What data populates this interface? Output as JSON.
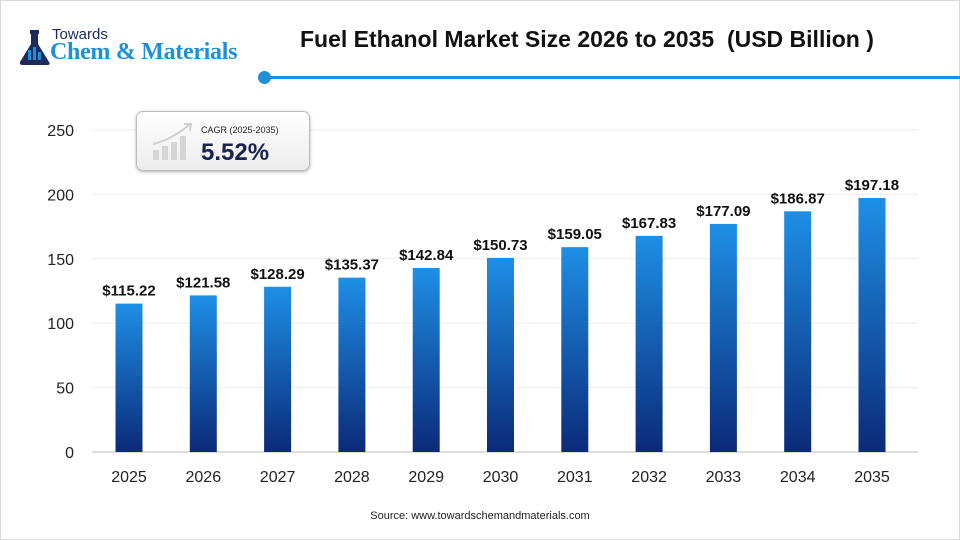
{
  "logo": {
    "line1": "Towards",
    "line2": "Chem & Materials"
  },
  "title": "Fuel Ethanol Market Size 2026 to 2035  (USD Billion )",
  "cagr": {
    "label": "CAGR (2025-2035)",
    "value": "5.52%"
  },
  "source": "Source: www.towardschemandmaterials.com",
  "colors": {
    "bar_top": "#1e8fe6",
    "bar_bottom": "#0b2a78",
    "accent": "#1f8fd6"
  },
  "chart_data": {
    "type": "bar",
    "categories": [
      "2025",
      "2026",
      "2027",
      "2028",
      "2029",
      "2030",
      "2031",
      "2032",
      "2033",
      "2034",
      "2035"
    ],
    "values": [
      115.22,
      121.58,
      128.29,
      135.37,
      142.84,
      150.73,
      159.05,
      167.83,
      177.09,
      186.87,
      197.18
    ],
    "data_labels": [
      "$115.22",
      "$121.58",
      "$128.29",
      "$135.37",
      "$142.84",
      "$150.73",
      "$159.05",
      "$167.83",
      "$177.09",
      "$186.87",
      "$197.18"
    ],
    "title": "Fuel Ethanol Market Size 2026 to 2035  (USD Billion )",
    "xlabel": "",
    "ylabel": "",
    "ylim": [
      0,
      250
    ],
    "yticks": [
      0,
      50,
      100,
      150,
      200,
      250
    ],
    "grid": true
  }
}
